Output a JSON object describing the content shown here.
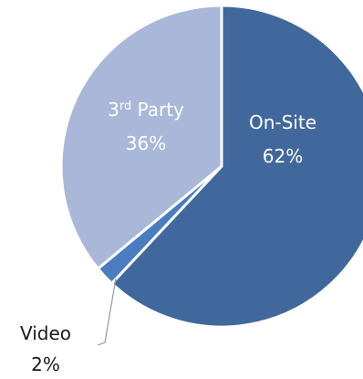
{
  "chart_data": {
    "type": "pie",
    "title": "",
    "slices": [
      {
        "name": "On-Site",
        "value": 62,
        "label_value": "62%",
        "color": "#41689c"
      },
      {
        "name": "Video",
        "value": 2,
        "label_value": "2%",
        "color": "#4a7cc0"
      },
      {
        "name": "3rd Party",
        "label_main": "3",
        "label_sup": "rd",
        "label_rest": " Party",
        "value": 36,
        "label_value": "36%",
        "color": "#a9b8d8"
      }
    ],
    "start_angle_deg": 0,
    "direction": "clockwise",
    "legend": "none",
    "slice_separator_color": "#ffffff"
  }
}
